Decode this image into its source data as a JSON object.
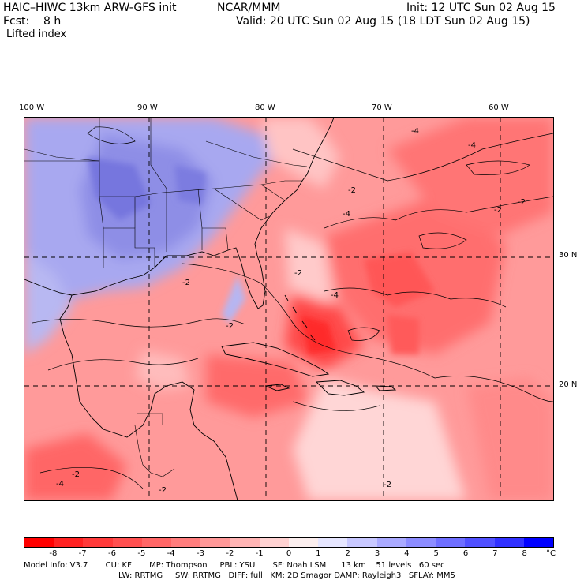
{
  "header": {
    "model": "HAIC–HIWC 13km ARW-GFS init",
    "org": "NCAR/MMM",
    "init": "Init: 12 UTC Sun 02 Aug 15",
    "fcst": "Fcst:    8 h",
    "valid": "Valid: 20 UTC Sun 02 Aug 15 (18 LDT Sun 02 Aug 15)",
    "field": "Lifted index"
  },
  "axes": {
    "lon_labels": [
      "100 W",
      "90 W",
      "80 W",
      "70 W",
      "60 W"
    ],
    "lat_labels": [
      "30 N",
      "20 N"
    ]
  },
  "contour_labels": [
    "-4",
    "-4",
    "-2",
    "-2",
    "-4",
    "-2",
    "-2",
    "-2",
    "-2",
    "-4",
    "-2",
    "-4",
    "-2",
    "-2"
  ],
  "legend": {
    "ticks": [
      "-8",
      "-7",
      "-6",
      "-5",
      "-4",
      "-3",
      "-2",
      "-1",
      "0",
      "1",
      "2",
      "3",
      "4",
      "5",
      "6",
      "7",
      "8"
    ],
    "unit": "°C",
    "colors": [
      "#ff0000",
      "#ff2222",
      "#ff3a3a",
      "#ff5050",
      "#ff6666",
      "#ff7d7d",
      "#ff9898",
      "#ffb4b4",
      "#ffd2d2",
      "#fbeeee",
      "#e6e6ff",
      "#c8c8ff",
      "#aaaaff",
      "#8c8cff",
      "#6e6eff",
      "#5050ff",
      "#3030ff",
      "#0000ff"
    ]
  },
  "model_info": {
    "line1": "Model Info: V3.7       CU: KF       MP: Thompson     PBL: YSU       SF: Noah LSM      13 km    51 levels   60 sec",
    "line2": "LW: RRTMG     SW: RRTMG   DIFF: full   KM: 2D Smagor DAMP: Rayleigh3   SFLAY: MM5"
  }
}
